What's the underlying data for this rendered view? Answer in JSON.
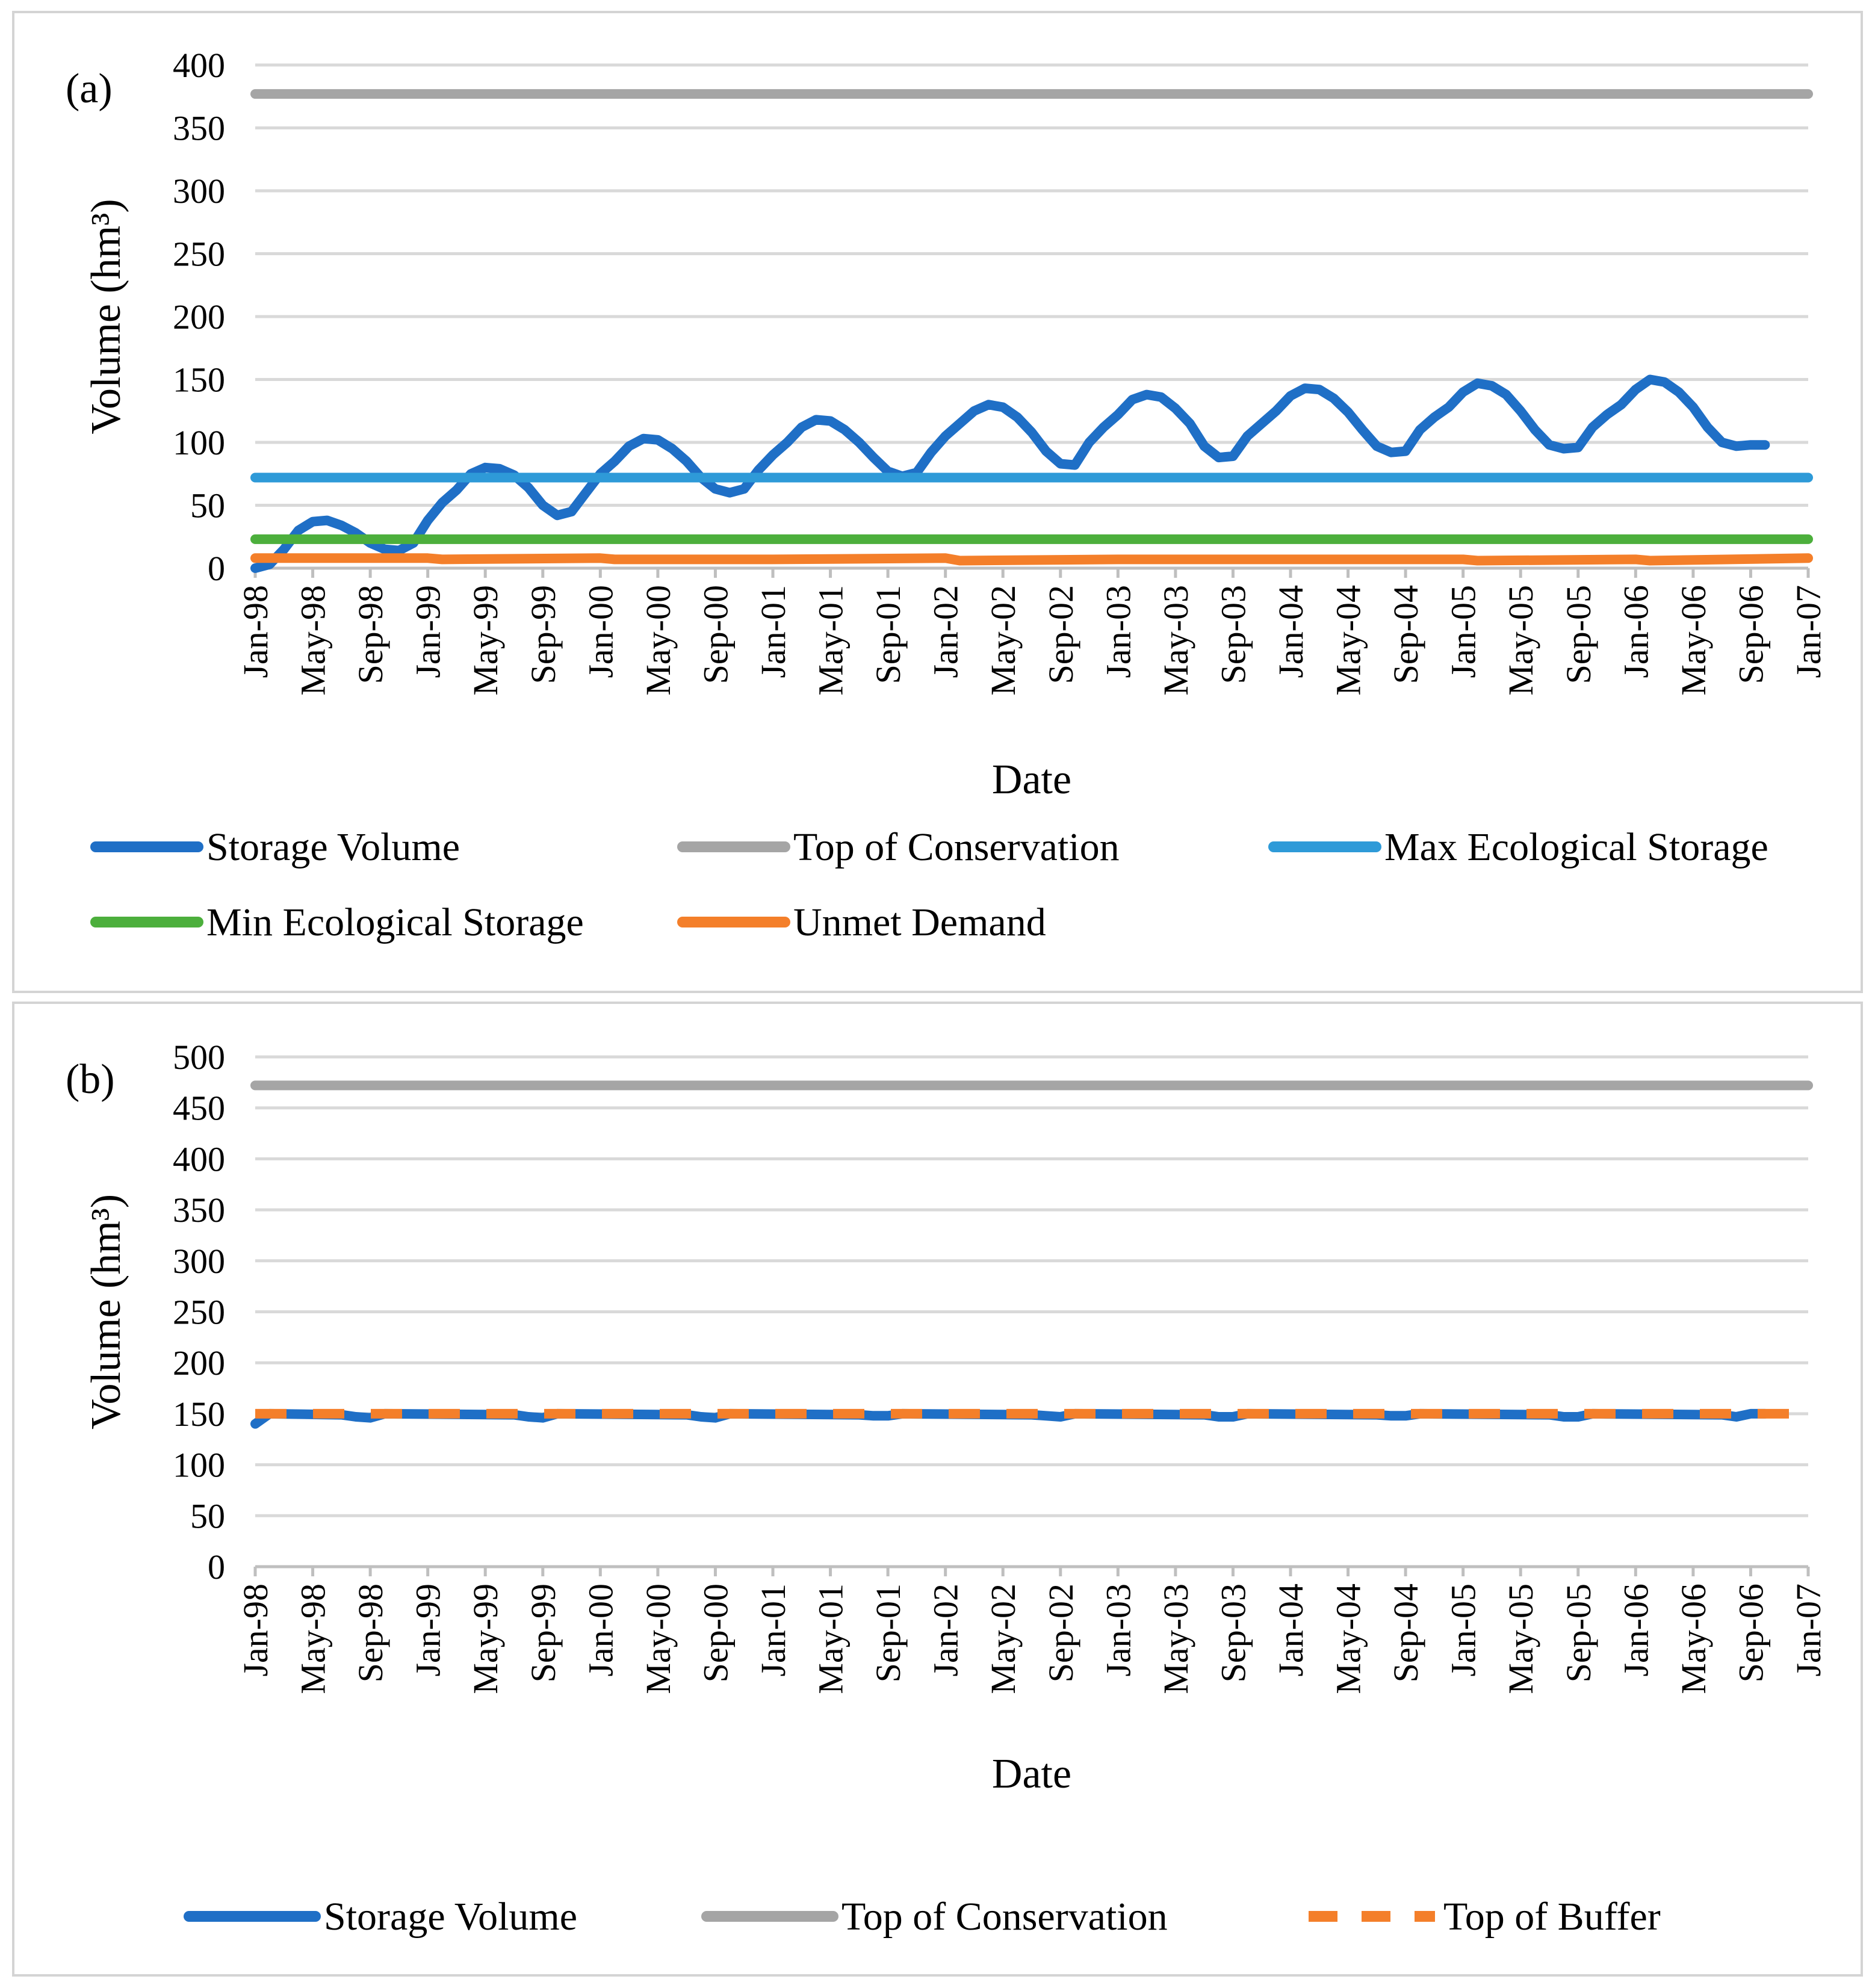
{
  "chart_data": [
    {
      "type": "line",
      "panel_label": "(a)",
      "xlabel": "Date",
      "ylabel": "Volume (hm³)",
      "ylim": [
        0,
        400
      ],
      "yticks": [
        0,
        50,
        100,
        150,
        200,
        250,
        300,
        350,
        400
      ],
      "xtick_labels": [
        "Jan-98",
        "May-98",
        "Sep-98",
        "Jan-99",
        "May-99",
        "Sep-99",
        "Jan-00",
        "May-00",
        "Sep-00",
        "Jan-01",
        "May-01",
        "Sep-01",
        "Jan-02",
        "May-02",
        "Sep-02",
        "Jan-03",
        "May-03",
        "Sep-03",
        "Jan-04",
        "May-04",
        "Sep-04",
        "Jan-05",
        "May-05",
        "Sep-05",
        "Jan-06",
        "May-06",
        "Sep-06",
        "Jan-07"
      ],
      "grid": true,
      "legend_position": "bottom",
      "series": [
        {
          "name": "Storage Volume",
          "color": "#1f6fc6",
          "dash": false,
          "points": [
            [
              0,
              0
            ],
            [
              1,
              3
            ],
            [
              2,
              15
            ],
            [
              3,
              30
            ],
            [
              4,
              37
            ],
            [
              5,
              38
            ],
            [
              6,
              34
            ],
            [
              7,
              28
            ],
            [
              8,
              20
            ],
            [
              9,
              15
            ],
            [
              10,
              14
            ],
            [
              11,
              20
            ],
            [
              12,
              38
            ],
            [
              13,
              52
            ],
            [
              14,
              62
            ],
            [
              15,
              75
            ],
            [
              16,
              80
            ],
            [
              17,
              79
            ],
            [
              18,
              74
            ],
            [
              19,
              64
            ],
            [
              20,
              50
            ],
            [
              21,
              42
            ],
            [
              22,
              45
            ],
            [
              23,
              60
            ],
            [
              24,
              75
            ],
            [
              25,
              85
            ],
            [
              26,
              97
            ],
            [
              27,
              103
            ],
            [
              28,
              102
            ],
            [
              29,
              95
            ],
            [
              30,
              85
            ],
            [
              31,
              72
            ],
            [
              32,
              63
            ],
            [
              33,
              60
            ],
            [
              34,
              63
            ],
            [
              35,
              78
            ],
            [
              36,
              90
            ],
            [
              37,
              100
            ],
            [
              38,
              112
            ],
            [
              39,
              118
            ],
            [
              40,
              117
            ],
            [
              41,
              110
            ],
            [
              42,
              100
            ],
            [
              43,
              88
            ],
            [
              44,
              77
            ],
            [
              45,
              73
            ],
            [
              46,
              76
            ],
            [
              47,
              92
            ],
            [
              48,
              105
            ],
            [
              49,
              115
            ],
            [
              50,
              125
            ],
            [
              51,
              130
            ],
            [
              52,
              128
            ],
            [
              53,
              120
            ],
            [
              54,
              108
            ],
            [
              55,
              93
            ],
            [
              56,
              83
            ],
            [
              57,
              82
            ],
            [
              58,
              100
            ],
            [
              59,
              112
            ],
            [
              60,
              122
            ],
            [
              61,
              134
            ],
            [
              62,
              138
            ],
            [
              63,
              136
            ],
            [
              64,
              127
            ],
            [
              65,
              115
            ],
            [
              66,
              97
            ],
            [
              67,
              88
            ],
            [
              68,
              89
            ],
            [
              69,
              105
            ],
            [
              70,
              115
            ],
            [
              71,
              125
            ],
            [
              72,
              137
            ],
            [
              73,
              143
            ],
            [
              74,
              142
            ],
            [
              75,
              135
            ],
            [
              76,
              124
            ],
            [
              77,
              110
            ],
            [
              78,
              97
            ],
            [
              79,
              92
            ],
            [
              80,
              93
            ],
            [
              81,
              110
            ],
            [
              82,
              120
            ],
            [
              83,
              128
            ],
            [
              84,
              140
            ],
            [
              85,
              147
            ],
            [
              86,
              145
            ],
            [
              87,
              138
            ],
            [
              88,
              125
            ],
            [
              89,
              110
            ],
            [
              90,
              98
            ],
            [
              91,
              95
            ],
            [
              92,
              96
            ],
            [
              93,
              112
            ],
            [
              94,
              122
            ],
            [
              95,
              130
            ],
            [
              96,
              142
            ],
            [
              97,
              150
            ],
            [
              98,
              148
            ],
            [
              99,
              140
            ],
            [
              100,
              128
            ],
            [
              101,
              112
            ],
            [
              102,
              100
            ],
            [
              103,
              97
            ],
            [
              104,
              98
            ],
            [
              105,
              98
            ]
          ]
        },
        {
          "name": "Top of Conservation",
          "color": "#a5a5a5",
          "dash": false,
          "points": [
            [
              0,
              377
            ],
            [
              108,
              377
            ]
          ]
        },
        {
          "name": "Max Ecological Storage",
          "color": "#2e9ad8",
          "dash": false,
          "points": [
            [
              0,
              72
            ],
            [
              108,
              72
            ]
          ]
        },
        {
          "name": "Min Ecological Storage",
          "color": "#4caf3c",
          "dash": false,
          "points": [
            [
              0,
              23
            ],
            [
              108,
              23
            ]
          ]
        },
        {
          "name": "Unmet Demand",
          "color": "#f47f2a",
          "dash": false,
          "points": [
            [
              0,
              8
            ],
            [
              12,
              8
            ],
            [
              13,
              7
            ],
            [
              24,
              8
            ],
            [
              25,
              7
            ],
            [
              36,
              7
            ],
            [
              48,
              8
            ],
            [
              49,
              6
            ],
            [
              60,
              7
            ],
            [
              72,
              7
            ],
            [
              84,
              7
            ],
            [
              85,
              6
            ],
            [
              96,
              7
            ],
            [
              97,
              6
            ],
            [
              108,
              8
            ]
          ]
        }
      ]
    },
    {
      "type": "line",
      "panel_label": "(b)",
      "xlabel": "Date",
      "ylabel": "Volume (hm³)",
      "ylim": [
        0,
        500
      ],
      "yticks": [
        0,
        50,
        100,
        150,
        200,
        250,
        300,
        350,
        400,
        450,
        500
      ],
      "xtick_labels": [
        "Jan-98",
        "May-98",
        "Sep-98",
        "Jan-99",
        "May-99",
        "Sep-99",
        "Jan-00",
        "May-00",
        "Sep-00",
        "Jan-01",
        "May-01",
        "Sep-01",
        "Jan-02",
        "May-02",
        "Sep-02",
        "Jan-03",
        "May-03",
        "Sep-03",
        "Jan-04",
        "May-04",
        "Sep-04",
        "Jan-05",
        "May-05",
        "Sep-05",
        "Jan-06",
        "May-06",
        "Sep-06",
        "Jan-07"
      ],
      "grid": true,
      "legend_position": "bottom",
      "series": [
        {
          "name": "Storage Volume",
          "color": "#1f6fc6",
          "dash": false,
          "points": [
            [
              0,
              140
            ],
            [
              1,
              150
            ],
            [
              6,
              149
            ],
            [
              7,
              147
            ],
            [
              8,
              146
            ],
            [
              9,
              150
            ],
            [
              18,
              149
            ],
            [
              19,
              147
            ],
            [
              20,
              146
            ],
            [
              21,
              150
            ],
            [
              30,
              149
            ],
            [
              31,
              147
            ],
            [
              32,
              146
            ],
            [
              33,
              150
            ],
            [
              42,
              149
            ],
            [
              43,
              148
            ],
            [
              44,
              148
            ],
            [
              45,
              150
            ],
            [
              54,
              149
            ],
            [
              55,
              148
            ],
            [
              56,
              147
            ],
            [
              57,
              150
            ],
            [
              66,
              149
            ],
            [
              67,
              147
            ],
            [
              68,
              147
            ],
            [
              69,
              150
            ],
            [
              78,
              149
            ],
            [
              79,
              148
            ],
            [
              80,
              148
            ],
            [
              81,
              150
            ],
            [
              90,
              149
            ],
            [
              91,
              147
            ],
            [
              92,
              147
            ],
            [
              93,
              150
            ],
            [
              102,
              149
            ],
            [
              103,
              147
            ],
            [
              104,
              150
            ],
            [
              105,
              150
            ]
          ]
        },
        {
          "name": "Top of Conservation",
          "color": "#a5a5a5",
          "dash": false,
          "points": [
            [
              0,
              472
            ],
            [
              108,
              472
            ]
          ]
        },
        {
          "name": "Top of Buffer",
          "color": "#f47f2a",
          "dash": true,
          "points": [
            [
              0,
              150
            ],
            [
              108,
              150
            ]
          ]
        }
      ]
    }
  ]
}
